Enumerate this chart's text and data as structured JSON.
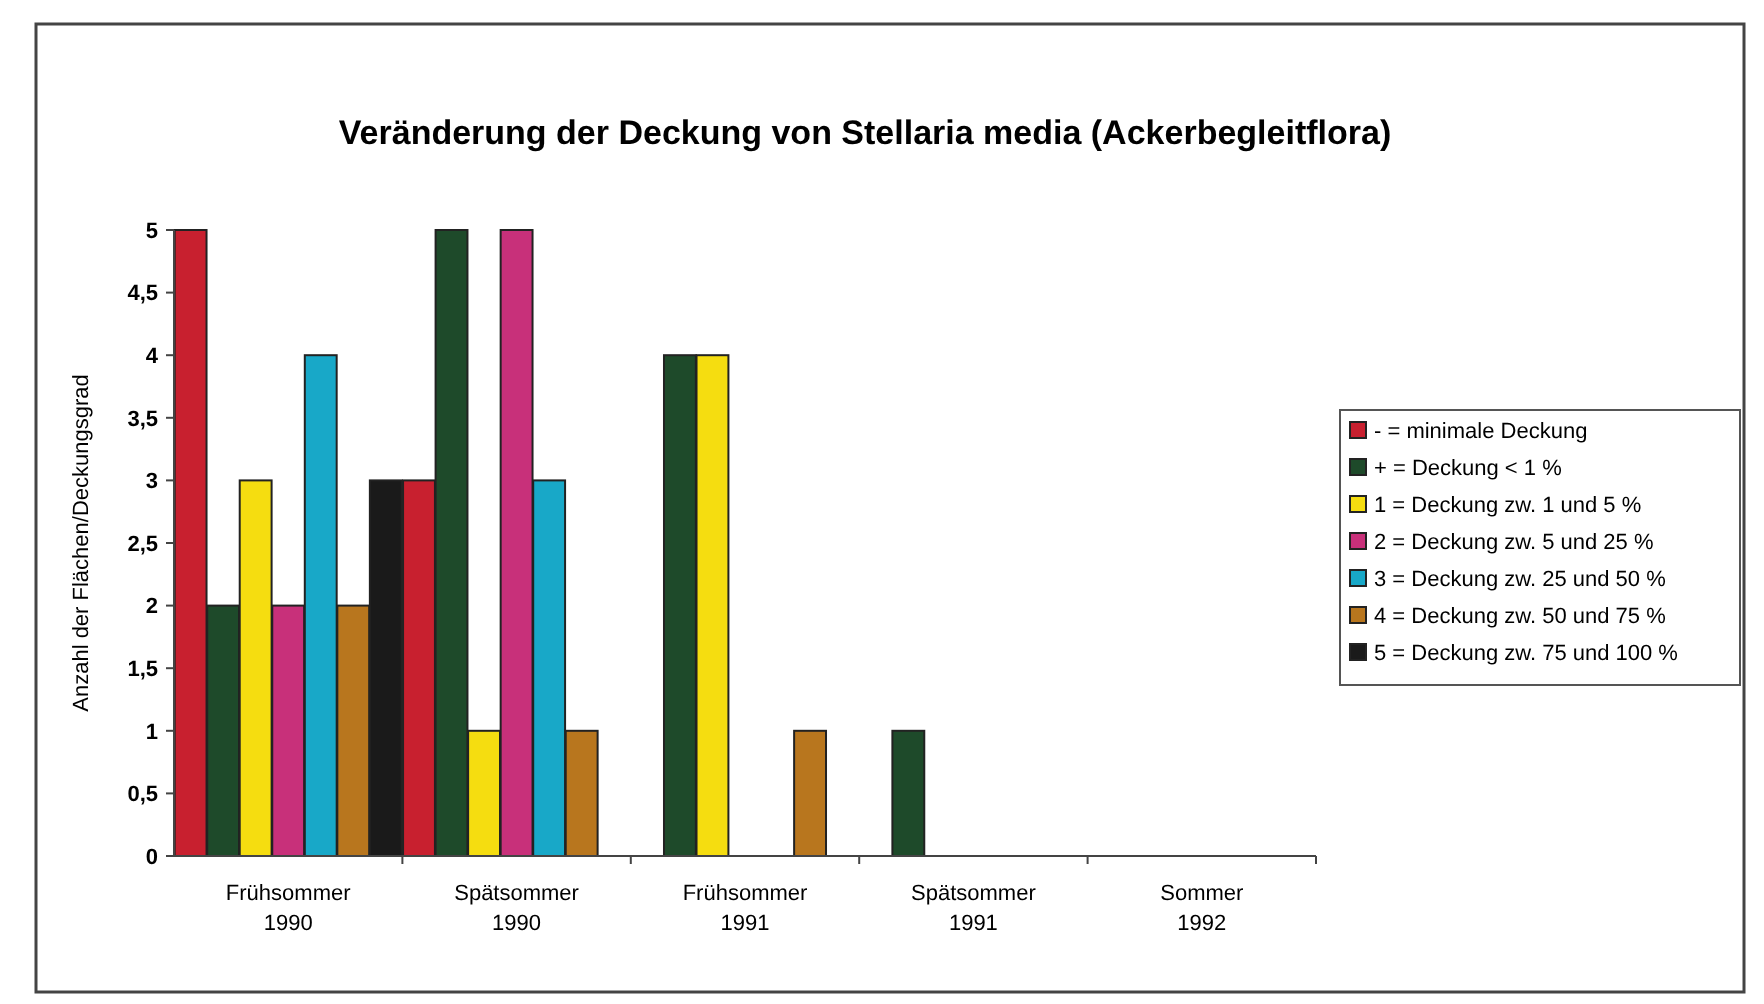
{
  "chart_data": {
    "type": "bar",
    "title": "Veränderung der Deckung von Stellaria media (Ackerbegleitflora)",
    "ylabel": "Anzahl der Flächen/Deckungsgrad",
    "categories": [
      "Frühsommer\n1990",
      "Spätsommer\n1990",
      "Frühsommer\n1991",
      "Spätsommer\n1991",
      "Sommer\n1992"
    ],
    "series": [
      {
        "name": "- = minimale Deckung",
        "color": "#c8202f",
        "values": [
          5,
          3,
          0,
          0,
          0
        ]
      },
      {
        "name": "+ = Deckung < 1 %",
        "color": "#1e4a2a",
        "values": [
          2,
          5,
          4,
          1,
          0
        ]
      },
      {
        "name": "1 = Deckung zw. 1 und 5 %",
        "color": "#f5dd10",
        "values": [
          3,
          1,
          4,
          0,
          0
        ]
      },
      {
        "name": "2 = Deckung zw. 5 und 25 %",
        "color": "#c8307a",
        "values": [
          2,
          5,
          0,
          0,
          0
        ]
      },
      {
        "name": "3 = Deckung zw. 25 und 50 %",
        "color": "#18a8c8",
        "values": [
          4,
          3,
          0,
          0,
          0
        ]
      },
      {
        "name": "4 = Deckung zw. 50 und 75 %",
        "color": "#b8761e",
        "values": [
          2,
          1,
          1,
          0,
          0
        ]
      },
      {
        "name": "5 = Deckung zw. 75 und 100 %",
        "color": "#1a1a1a",
        "values": [
          3,
          0,
          0,
          0,
          0
        ]
      }
    ],
    "ylim": [
      0,
      5
    ],
    "yticks": [
      0,
      {
        "value": 0.5,
        "label": "0,5"
      },
      1,
      {
        "value": 1.5,
        "label": "1,5"
      },
      2,
      {
        "value": 2.5,
        "label": "2,5"
      },
      3,
      {
        "value": 3.5,
        "label": "3,5"
      },
      4,
      {
        "value": 4.5,
        "label": "4,5"
      },
      5
    ],
    "grid": false,
    "legend": "right"
  }
}
